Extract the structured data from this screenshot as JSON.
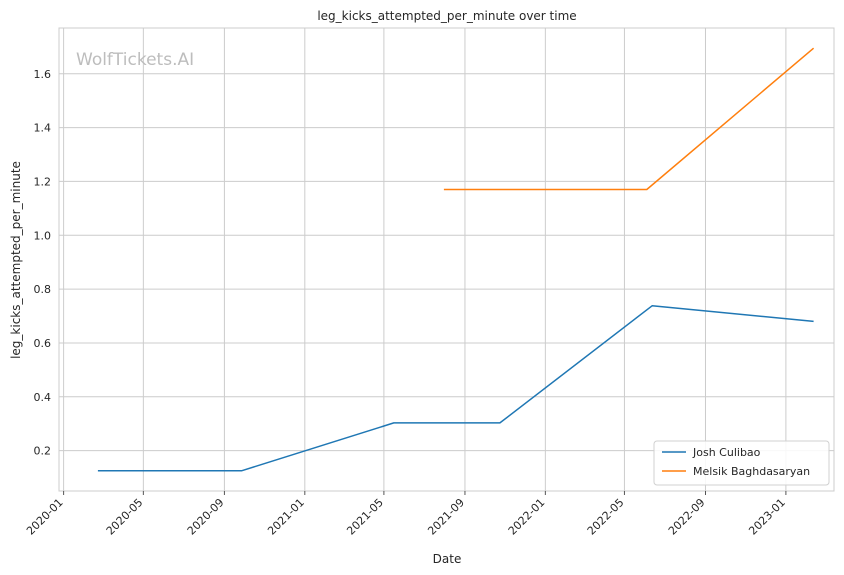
{
  "chart_data": {
    "type": "line",
    "title": "leg_kicks_attempted_per_minute over time",
    "xlabel": "Date",
    "ylabel": "leg_kicks_attempted_per_minute",
    "watermark": "WolfTickets.AI",
    "x_ticks": [
      "2020-01",
      "2020-05",
      "2020-09",
      "2021-01",
      "2021-05",
      "2021-09",
      "2022-01",
      "2022-05",
      "2022-09",
      "2023-01"
    ],
    "y_ticks": [
      "0.2",
      "0.4",
      "0.6",
      "0.8",
      "1.0",
      "1.2",
      "1.4",
      "1.6"
    ],
    "xlim": [
      "2019-12-25",
      "2023-03-15"
    ],
    "ylim": [
      0.05,
      1.77
    ],
    "grid": true,
    "legend_position": "lower-right",
    "series": [
      {
        "name": "Josh Culibao",
        "color": "#1f77b4",
        "points": [
          {
            "x": "2020-02-22",
            "y": 0.125
          },
          {
            "x": "2020-09-27",
            "y": 0.125
          },
          {
            "x": "2021-05-16",
            "y": 0.303
          },
          {
            "x": "2021-10-24",
            "y": 0.303
          },
          {
            "x": "2022-06-12",
            "y": 0.738
          },
          {
            "x": "2023-02-12",
            "y": 0.68
          }
        ]
      },
      {
        "name": "Melsik Baghdasaryan",
        "color": "#ff7f0e",
        "points": [
          {
            "x": "2021-07-31",
            "y": 1.17
          },
          {
            "x": "2022-06-04",
            "y": 1.17
          },
          {
            "x": "2023-02-12",
            "y": 1.695
          }
        ]
      }
    ]
  }
}
